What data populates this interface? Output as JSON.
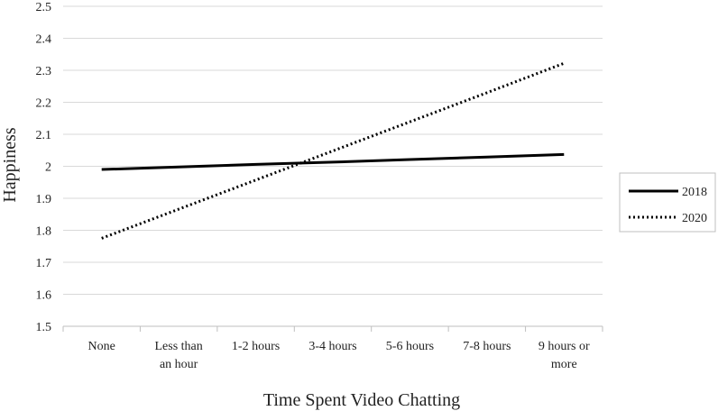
{
  "chart_data": {
    "type": "line",
    "title": "",
    "xlabel": "Time Spent Video Chatting",
    "ylabel": "Happiness",
    "categories": [
      [
        "None"
      ],
      [
        "Less than",
        "an hour"
      ],
      [
        "1-2 hours"
      ],
      [
        "3-4 hours"
      ],
      [
        "5-6 hours"
      ],
      [
        "7-8 hours"
      ],
      [
        "9 hours or",
        "more"
      ]
    ],
    "ylim": [
      1.5,
      2.5
    ],
    "yticks": [
      1.5,
      1.6,
      1.7,
      1.8,
      1.9,
      2,
      2.1,
      2.2,
      2.3,
      2.4,
      2.5
    ],
    "grid": true,
    "legend_position": "right",
    "series": [
      {
        "name": "2018",
        "style": "solid",
        "color": "#000000",
        "values": [
          1.99,
          1.998,
          2.006,
          2.013,
          2.021,
          2.029,
          2.037
        ]
      },
      {
        "name": "2020",
        "style": "dotted",
        "color": "#000000",
        "values": [
          1.775,
          1.866,
          1.957,
          2.048,
          2.139,
          2.23,
          2.322
        ]
      }
    ]
  }
}
